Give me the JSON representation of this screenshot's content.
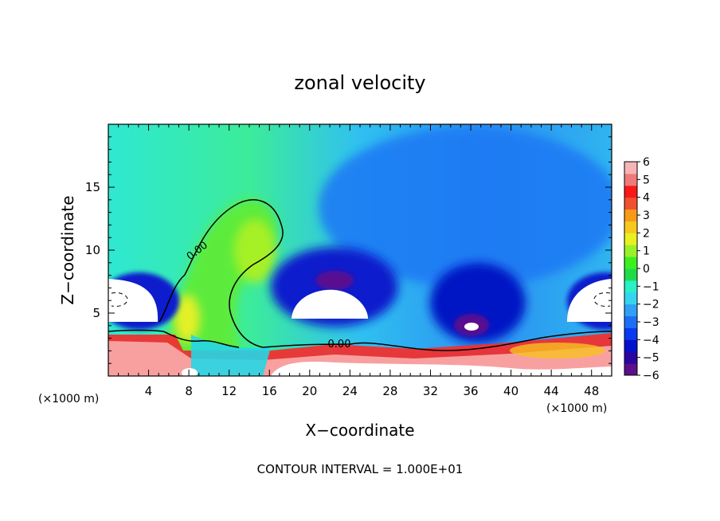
{
  "chart_data": {
    "type": "heatmap",
    "title": "zonal velocity",
    "xlabel": "X−coordinate",
    "ylabel": "Z−coordinate",
    "x_unit_left": "(×1000 m)",
    "x_unit_right": "(×1000 m)",
    "xlim": [
      0,
      50
    ],
    "ylim": [
      0,
      20
    ],
    "x_ticks": [
      4,
      8,
      12,
      16,
      20,
      24,
      28,
      32,
      36,
      40,
      44,
      48
    ],
    "y_ticks": [
      5,
      10,
      15
    ],
    "colorbar": {
      "vmin": -6,
      "vmax": 6,
      "ticks": [
        6,
        5,
        4,
        3,
        2,
        1,
        0,
        -1,
        -2,
        -3,
        -4,
        -5,
        -6
      ],
      "tick_labels": [
        "6",
        "5",
        "4",
        "3",
        "2",
        "1",
        "0",
        "−1",
        "−2",
        "−3",
        "−4",
        "−5",
        "−6"
      ],
      "colors": [
        "#5b0f8a",
        "#2a06a0",
        "#0412cc",
        "#0a3af0",
        "#1c6ef6",
        "#2fa0f4",
        "#36d4f0",
        "#28f0c8",
        "#1fdc48",
        "#3cf020",
        "#9cf02a",
        "#e8f022",
        "#f8c81e",
        "#f89a18",
        "#f05030",
        "#f81818",
        "#f07a7a",
        "#f6b4b4"
      ]
    },
    "contour_labels": [
      {
        "text": "0.00",
        "x": 7.5,
        "z": 9.5
      },
      {
        "text": "0.00",
        "x": 22.8,
        "z": 2.5
      }
    ],
    "annotation": "CONTOUR INTERVAL = 1.000E+01"
  }
}
